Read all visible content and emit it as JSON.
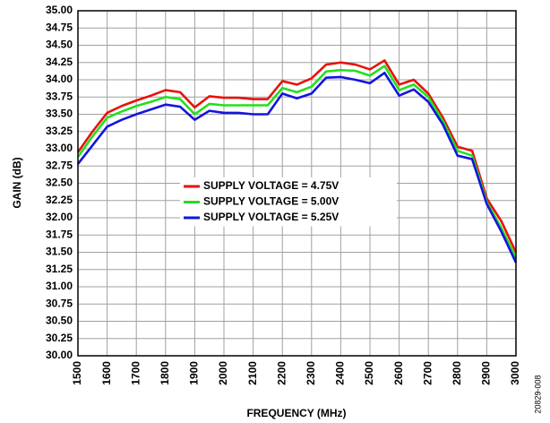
{
  "chart_data": {
    "type": "line",
    "x_label": "FREQUENCY (MHz)",
    "y_label": "GAIN (dB)",
    "note": "20829-008",
    "x": [
      1500,
      1550,
      1600,
      1650,
      1700,
      1750,
      1800,
      1850,
      1900,
      1950,
      2000,
      2050,
      2100,
      2150,
      2200,
      2250,
      2300,
      2350,
      2400,
      2450,
      2500,
      2550,
      2600,
      2650,
      2700,
      2750,
      2800,
      2850,
      2900,
      2950,
      3000
    ],
    "series": [
      {
        "name": "SUPPLY VOLTAGE = 4.75V",
        "color": "#e8120c",
        "values": [
          32.95,
          33.25,
          33.52,
          33.62,
          33.7,
          33.77,
          33.85,
          33.82,
          33.6,
          33.76,
          33.74,
          33.74,
          33.72,
          33.72,
          33.98,
          33.93,
          34.02,
          34.22,
          34.25,
          34.22,
          34.15,
          34.28,
          33.93,
          34.0,
          33.8,
          33.45,
          33.03,
          32.97,
          32.28,
          31.95,
          31.5
        ]
      },
      {
        "name": "SUPPLY VOLTAGE = 5.00V",
        "color": "#22e01c",
        "values": [
          32.88,
          33.18,
          33.45,
          33.54,
          33.62,
          33.68,
          33.75,
          33.72,
          33.5,
          33.65,
          33.63,
          33.63,
          33.63,
          33.63,
          33.88,
          33.82,
          33.9,
          34.12,
          34.14,
          34.13,
          34.06,
          34.2,
          33.85,
          33.93,
          33.75,
          33.4,
          32.97,
          32.9,
          32.23,
          31.85,
          31.42
        ]
      },
      {
        "name": "SUPPLY VOLTAGE = 5.25V",
        "color": "#1414e0",
        "values": [
          32.78,
          33.05,
          33.32,
          33.42,
          33.5,
          33.57,
          33.64,
          33.61,
          33.42,
          33.55,
          33.52,
          33.52,
          33.5,
          33.5,
          33.8,
          33.73,
          33.8,
          34.03,
          34.04,
          34.0,
          33.95,
          34.1,
          33.77,
          33.86,
          33.68,
          33.35,
          32.9,
          32.85,
          32.2,
          31.8,
          31.35
        ]
      }
    ],
    "xlim": [
      1500,
      3000
    ],
    "xticks": [
      1500,
      1600,
      1700,
      1800,
      1900,
      2000,
      2100,
      2200,
      2300,
      2400,
      2500,
      2600,
      2700,
      2800,
      2900,
      3000
    ],
    "ylim": [
      30,
      35
    ],
    "yticks": [
      {
        "value": 30,
        "label": "30.00"
      },
      {
        "value": 30.25,
        "label": "30.25"
      },
      {
        "value": 30.5,
        "label": "30.50"
      },
      {
        "value": 30.75,
        "label": "30.75"
      },
      {
        "value": 31,
        "label": "31.00"
      },
      {
        "value": 31.25,
        "label": "31.25"
      },
      {
        "value": 31.5,
        "label": "31.50"
      },
      {
        "value": 31.75,
        "label": "31.75"
      },
      {
        "value": 32,
        "label": "32.00"
      },
      {
        "value": 32.25,
        "label": "32.25"
      },
      {
        "value": 32.5,
        "label": "32.50"
      },
      {
        "value": 32.75,
        "label": "32.75"
      },
      {
        "value": 33,
        "label": "33.00"
      },
      {
        "value": 33.25,
        "label": "33.25"
      },
      {
        "value": 33.5,
        "label": "33.50"
      },
      {
        "value": 33.75,
        "label": "33.75"
      },
      {
        "value": 34,
        "label": "34.00"
      },
      {
        "value": 34.25,
        "label": "34.25"
      },
      {
        "value": 34.5,
        "label": "34.50"
      },
      {
        "value": 34.75,
        "label": "34.75"
      },
      {
        "value": 35,
        "label": "35.00"
      }
    ],
    "grid": true
  }
}
